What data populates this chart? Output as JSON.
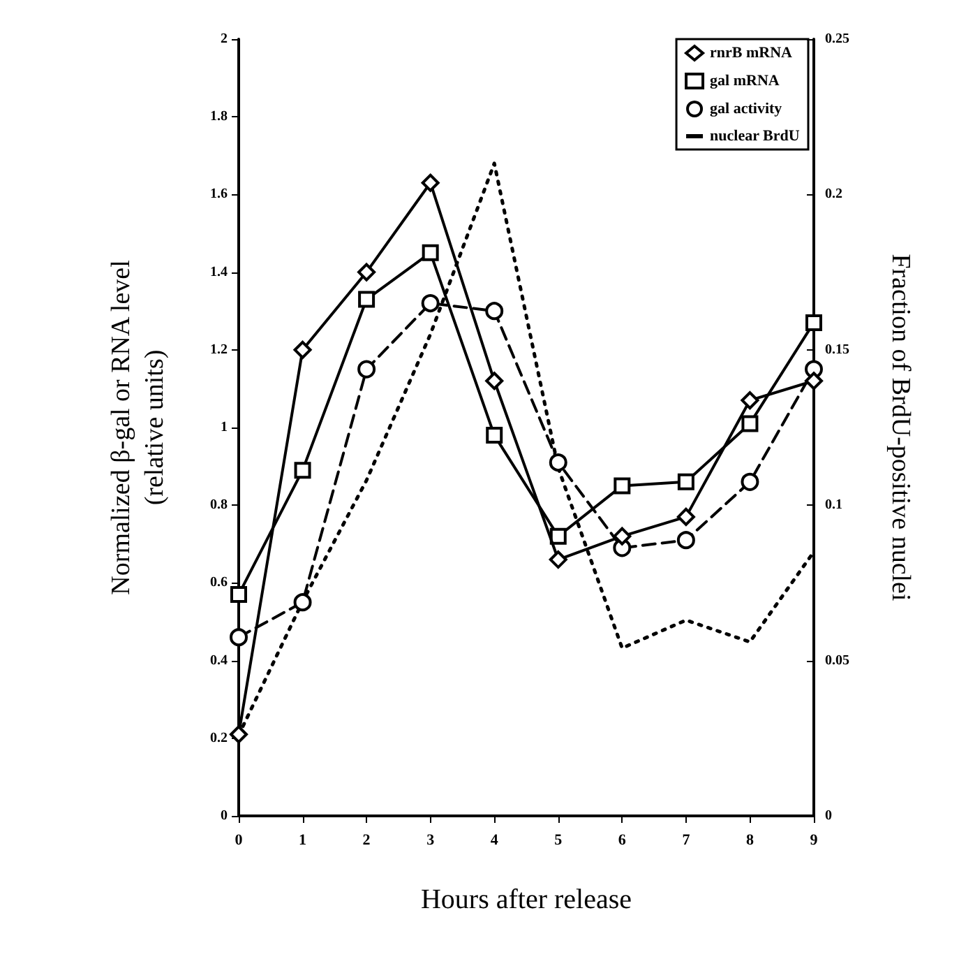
{
  "chart_data": {
    "type": "line",
    "xlabel": "Hours after release",
    "ylabel": "Normalized β-gal or RNA level\n(relative units)",
    "y2label": "Fraction of BrdU-positive nuclei",
    "x": [
      0,
      1,
      2,
      3,
      4,
      5,
      6,
      7,
      8,
      9
    ],
    "series": [
      {
        "name": "rnrB mRNA",
        "color": "#000000",
        "marker": "diamond",
        "line_style": "solid",
        "values": [
          0.21,
          1.2,
          1.4,
          1.63,
          1.12,
          0.66,
          0.72,
          0.77,
          1.07,
          1.12
        ]
      },
      {
        "name": "gal mRNA",
        "color": "#000000",
        "marker": "square",
        "line_style": "solid",
        "values": [
          0.57,
          0.89,
          1.33,
          1.45,
          0.98,
          0.72,
          0.85,
          0.86,
          1.01,
          1.27
        ]
      },
      {
        "name": "gal activity",
        "color": "#000000",
        "marker": "circle",
        "line_style": "dashed",
        "values": [
          0.46,
          0.55,
          1.15,
          1.32,
          1.3,
          0.91,
          0.69,
          0.71,
          0.86,
          1.15
        ]
      },
      {
        "name": "nuclear BrdU",
        "color": "#000000",
        "marker": "none",
        "line_style": "dotted",
        "axis": "y2",
        "values": [
          0.026,
          0.069,
          0.108,
          0.155,
          0.21,
          0.112,
          0.054,
          0.063,
          0.056,
          0.085
        ]
      }
    ],
    "xlim": [
      0,
      9
    ],
    "xticks": [
      0,
      1,
      2,
      3,
      4,
      5,
      6,
      7,
      8,
      9
    ],
    "ylim": [
      0,
      2
    ],
    "yticks": [
      0,
      0.2,
      0.4,
      0.6,
      0.8,
      1,
      1.2,
      1.4,
      1.6,
      1.8,
      2
    ],
    "y2lim": [
      0,
      0.25
    ],
    "y2ticks": [
      0,
      0.05,
      0.1,
      0.15,
      0.2,
      0.25
    ],
    "grid": false,
    "legend": "top right"
  }
}
